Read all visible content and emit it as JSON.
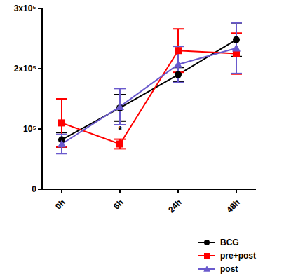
{
  "chart_data": {
    "type": "line",
    "categories": [
      "0h",
      "6h",
      "24h",
      "48h"
    ],
    "ylim": [
      0,
      300000
    ],
    "yticks": [
      0,
      {
        "value": 100000,
        "label": "10⁵"
      },
      {
        "value": 200000,
        "label": "2x10⁵"
      },
      {
        "value": 300000,
        "label": "3x10⁵"
      }
    ],
    "grid": false,
    "legend": "lower right",
    "series": [
      {
        "name": "BCG",
        "color": "#000000",
        "marker": "circle",
        "values": [
          82000,
          135000,
          190000,
          248000
        ],
        "errors": [
          12000,
          22000,
          12000,
          28000
        ]
      },
      {
        "name": "pre+post",
        "color": "#ff0000",
        "marker": "square",
        "values": [
          110000,
          75000,
          230000,
          225000
        ],
        "errors": [
          40000,
          8000,
          36000,
          34000
        ]
      },
      {
        "name": "post",
        "color": "#6a5acd",
        "marker": "triangle",
        "values": [
          75000,
          137000,
          207000,
          234000
        ],
        "errors": [
          16000,
          30000,
          30000,
          42000
        ]
      }
    ],
    "annotations": [
      {
        "text": "*",
        "x": "6h",
        "y": 97000
      }
    ]
  }
}
